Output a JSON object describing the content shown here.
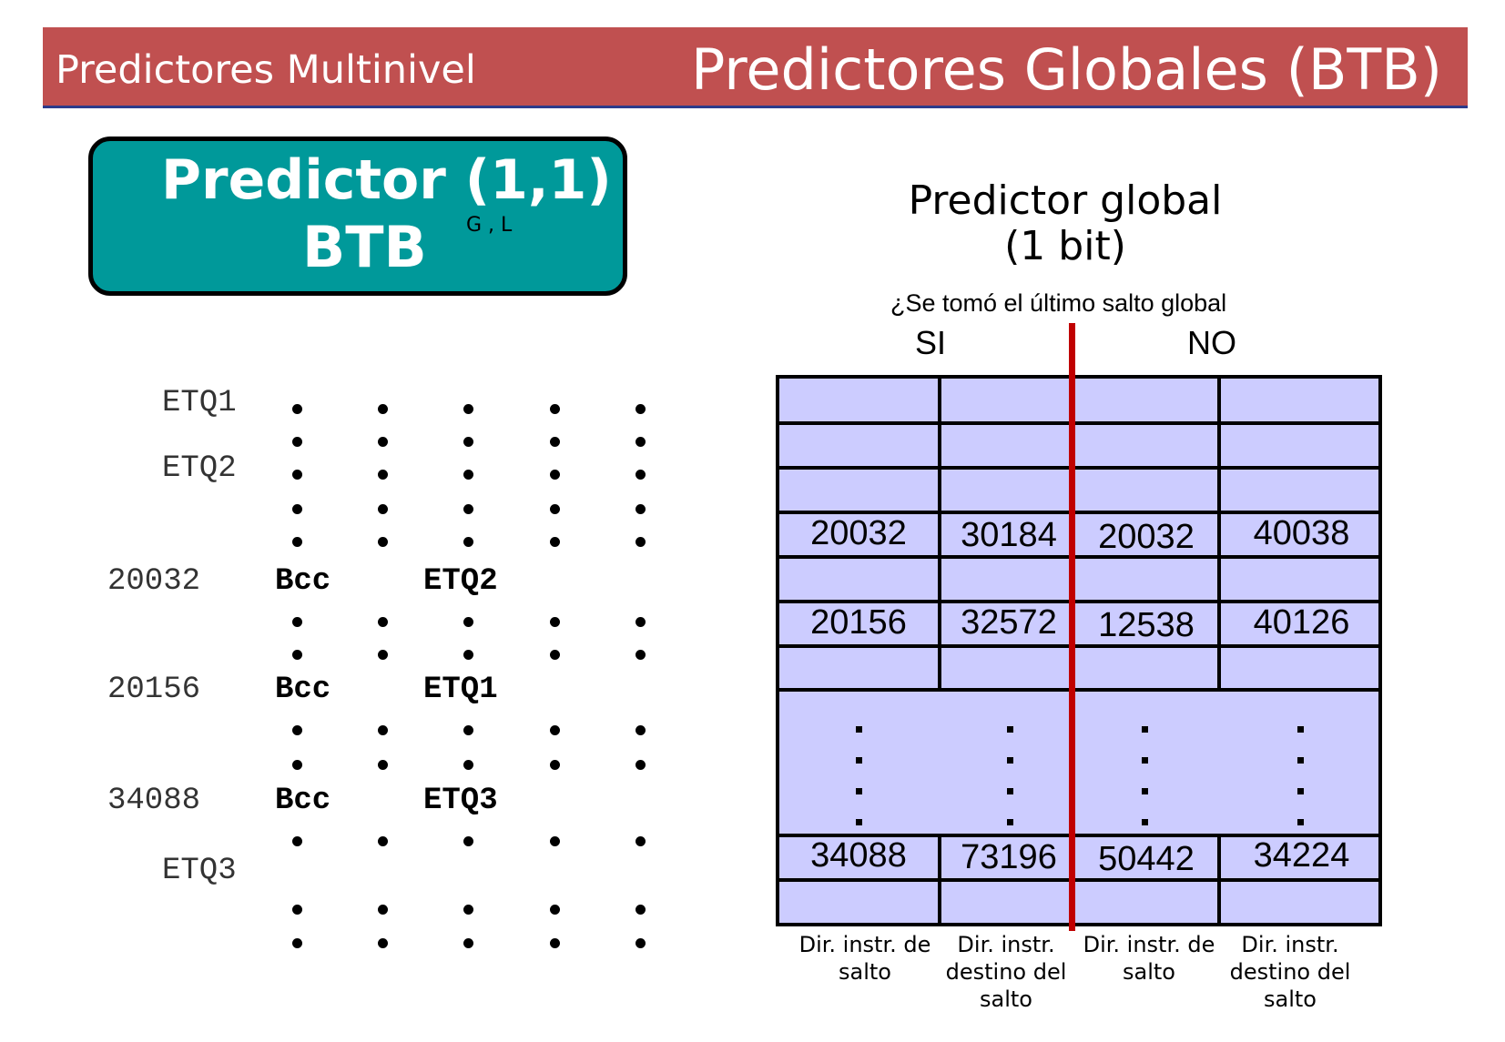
{
  "header": {
    "left_title": "Predictores Multinivel",
    "right_title": "Predictores Globales (BTB)"
  },
  "predictor_box": {
    "title": "Predictor (1,1)",
    "subscript": "G , L",
    "subtitle": "BTB"
  },
  "global_predictor": {
    "title_line1": "Predictor global",
    "title_line2": "(1 bit)",
    "question": "¿Se tomó el último salto global",
    "yes": "SI",
    "no": "NO"
  },
  "code": {
    "labels": [
      "ETQ1",
      "ETQ2",
      "ETQ3"
    ],
    "branches": [
      {
        "address": "20032",
        "op": "Bcc",
        "target": "ETQ2"
      },
      {
        "address": "20156",
        "op": "Bcc",
        "target": "ETQ1"
      },
      {
        "address": "34088",
        "op": "Bcc",
        "target": "ETQ3"
      }
    ]
  },
  "table": {
    "rows": [
      [
        "20032",
        "30184",
        "20032",
        "40038"
      ],
      [
        "20156",
        "32572",
        "12538",
        "40126"
      ],
      [
        "34088",
        "73196",
        "50442",
        "34224"
      ]
    ],
    "captions": [
      "Dir. instr. de salto",
      "Dir. instr. destino del salto",
      "Dir. instr. de salto",
      "Dir. instr. destino del salto"
    ]
  },
  "colors": {
    "header_bg": "#c05050",
    "box_bg": "#00999a",
    "table_bg": "#ccccff",
    "divider": "#c00000"
  }
}
